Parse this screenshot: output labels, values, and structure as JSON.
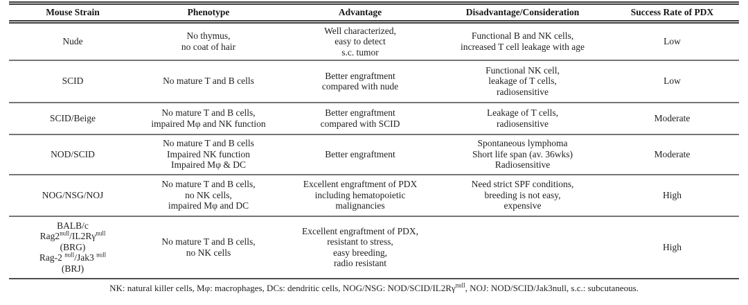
{
  "colors": {
    "text": "#1e1e1e",
    "rule_dark": "#3d3d3d",
    "rule_gray": "#757575",
    "background": "#ffffff"
  },
  "table": {
    "columns": [
      "Mouse Strain",
      "Phenotype",
      "Advantage",
      "Disadvantage/Consideration",
      "Success Rate of PDX"
    ],
    "rows": [
      {
        "strain": [
          "Nude"
        ],
        "phenotype": [
          "No thymus,",
          "no coat of hair"
        ],
        "advantage": [
          "Well characterized,",
          "easy to detect",
          "s.c. tumor"
        ],
        "disadvantage": [
          "Functional B and NK cells,",
          "increased T cell leakage with age"
        ],
        "success": "Low"
      },
      {
        "strain": [
          "SCID"
        ],
        "phenotype": [
          "No mature T and B cells"
        ],
        "advantage": [
          "Better engraftment",
          "compared with nude"
        ],
        "disadvantage": [
          "Functional NK cell,",
          "leakage of T cells,",
          "radiosensitive"
        ],
        "success": "Low"
      },
      {
        "strain": [
          "SCID/Beige"
        ],
        "phenotype": [
          "No mature T and B cells,",
          "impaired Mφ and NK function"
        ],
        "advantage": [
          "Better engraftment",
          "compared with SCID"
        ],
        "disadvantage": [
          "Leakage of T cells,",
          "radiosensitive"
        ],
        "success": "Moderate"
      },
      {
        "strain": [
          "NOD/SCID"
        ],
        "phenotype": [
          "No mature T and B cells",
          "Impaired NK function",
          "Impaired Mφ & DC"
        ],
        "advantage": [
          "Better engraftment"
        ],
        "disadvantage": [
          "Spontaneous lymphoma",
          "Short life span (av. 36wks)",
          "Radiosensitive"
        ],
        "success": "Moderate"
      },
      {
        "strain": [
          "NOG/NSG/NOJ"
        ],
        "phenotype": [
          "No mature T and B cells,",
          "no NK cells,",
          "impaired Mφ and DC"
        ],
        "advantage": [
          "Excellent engraftment of PDX",
          "including hematopoietic",
          "malignancies"
        ],
        "disadvantage": [
          "Need strict SPF conditions,",
          "breeding is not easy,",
          "expensive"
        ],
        "success": "High"
      },
      {
        "strain": [
          "BALB/c",
          "Rag2[null]/IL2Rγ[null]",
          "(BRG)",
          "Rag-2 [null]/Jak3 [null]",
          "(BRJ)"
        ],
        "phenotype": [
          "No mature T and B cells,",
          "no NK cells"
        ],
        "advantage": [
          "Excellent engraftment of PDX,",
          "resistant to stress,",
          "easy breeding,",
          "radio resistant"
        ],
        "disadvantage": [],
        "success": "High"
      }
    ],
    "footnote": "NK: natural killer cells, Mφ: macrophages, DCs: dendritic cells, NOG/NSG: NOD/SCID/IL2Rγ[null], NOJ: NOD/SCID/Jak3null, s.c.: subcutaneous."
  }
}
